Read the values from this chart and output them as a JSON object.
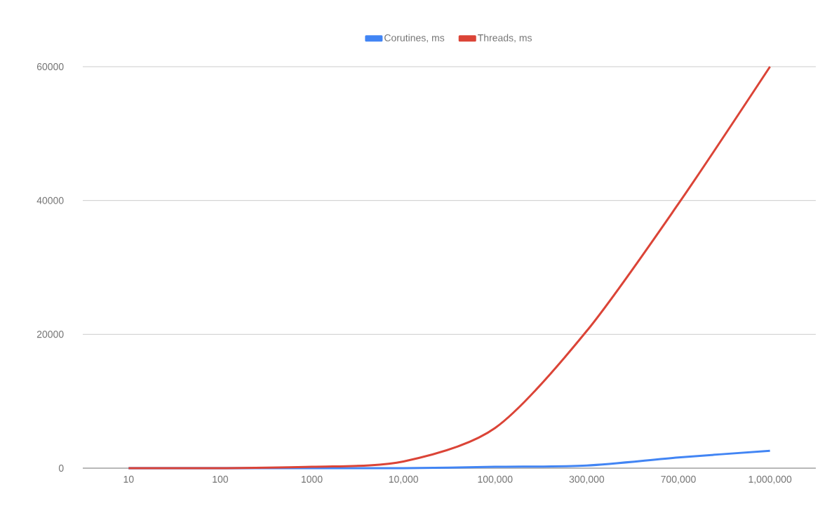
{
  "chart_data": {
    "type": "line",
    "categories": [
      "10",
      "100",
      "1000",
      "10,000",
      "100,000",
      "300,000",
      "700,000",
      "1,000,000"
    ],
    "series": [
      {
        "name": "Corutines, ms",
        "color": "#4285f4",
        "values": [
          0,
          0,
          0,
          0,
          200,
          400,
          1600,
          2600
        ]
      },
      {
        "name": "Threads, ms",
        "color": "#db4437",
        "values": [
          0,
          0,
          200,
          1000,
          6000,
          20500,
          39500,
          60000
        ]
      }
    ],
    "ylim": [
      0,
      60000
    ],
    "yticks": [
      0,
      20000,
      40000,
      60000
    ],
    "grid": "y",
    "legend": "top",
    "marker": "none",
    "line_style": "solid"
  }
}
